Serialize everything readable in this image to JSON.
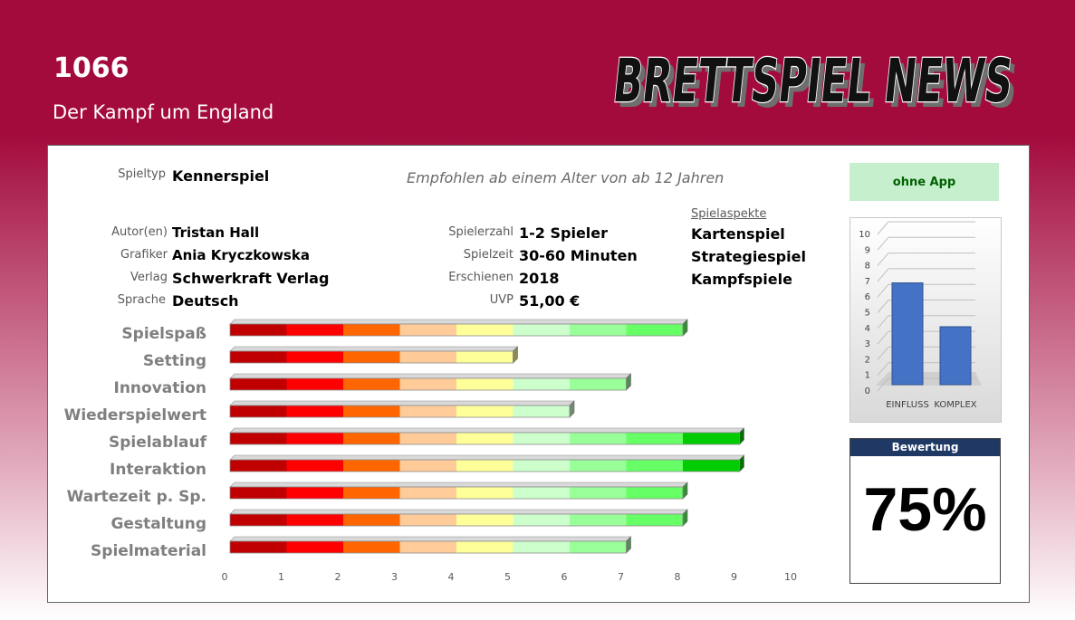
{
  "header": {
    "title": "1066",
    "subtitle": "Der Kampf um England",
    "logo_text": "BRETTSPIEL NEWS"
  },
  "info": {
    "spieltyp": {
      "label": "Spieltyp",
      "value": "Kennerspiel"
    },
    "age": "Empfohlen ab einem Alter von ab 12 Jahren",
    "left": [
      {
        "label": "Autor(en)",
        "value": "Tristan Hall"
      },
      {
        "label": "Grafiker",
        "value": "Ania Kryczkowska"
      },
      {
        "label": "Verlag",
        "value": "Schwerkraft Verlag"
      },
      {
        "label": "Sprache",
        "value": "Deutsch"
      }
    ],
    "mid": [
      {
        "label": "Spielerzahl",
        "value": "1-2 Spieler"
      },
      {
        "label": "Spielzeit",
        "value": "30-60 Minuten"
      },
      {
        "label": "Erschienen",
        "value": "2018"
      },
      {
        "label": "UVP",
        "value": "51,00 €"
      }
    ],
    "aspects_title": "Spielaspekte",
    "aspects": [
      "Kartenspiel",
      "Strategiespiel",
      "Kampfspiele"
    ]
  },
  "app_badge": "ohne App",
  "rating": {
    "label": "Bewertung",
    "value": "75%"
  },
  "chart_data": [
    {
      "type": "bar",
      "orientation": "horizontal",
      "categories": [
        "Spielspaß",
        "Setting",
        "Innovation",
        "Wiederspielwert",
        "Spielablauf",
        "Interaktion",
        "Wartezeit p. Sp.",
        "Gestaltung",
        "Spielmaterial"
      ],
      "values": [
        8,
        5,
        7,
        6,
        9,
        9,
        8,
        8,
        7
      ],
      "xlim": [
        0,
        10
      ],
      "xticks": [
        0,
        1,
        2,
        3,
        4,
        5,
        6,
        7,
        8,
        9,
        10
      ],
      "segment_colors": [
        "#c00000",
        "#ff0000",
        "#ff6600",
        "#ffcc99",
        "#ffff99",
        "#ccffcc",
        "#99ff99",
        "#66ff66",
        "#00cc00",
        "#009900"
      ]
    },
    {
      "type": "bar",
      "categories": [
        "EINFLUSS",
        "KOMPLEX"
      ],
      "values": [
        6.5,
        3.7
      ],
      "ylim": [
        0,
        10
      ],
      "yticks": [
        0,
        1,
        2,
        3,
        4,
        5,
        6,
        7,
        8,
        9,
        10
      ],
      "color": "#4472c4"
    }
  ]
}
